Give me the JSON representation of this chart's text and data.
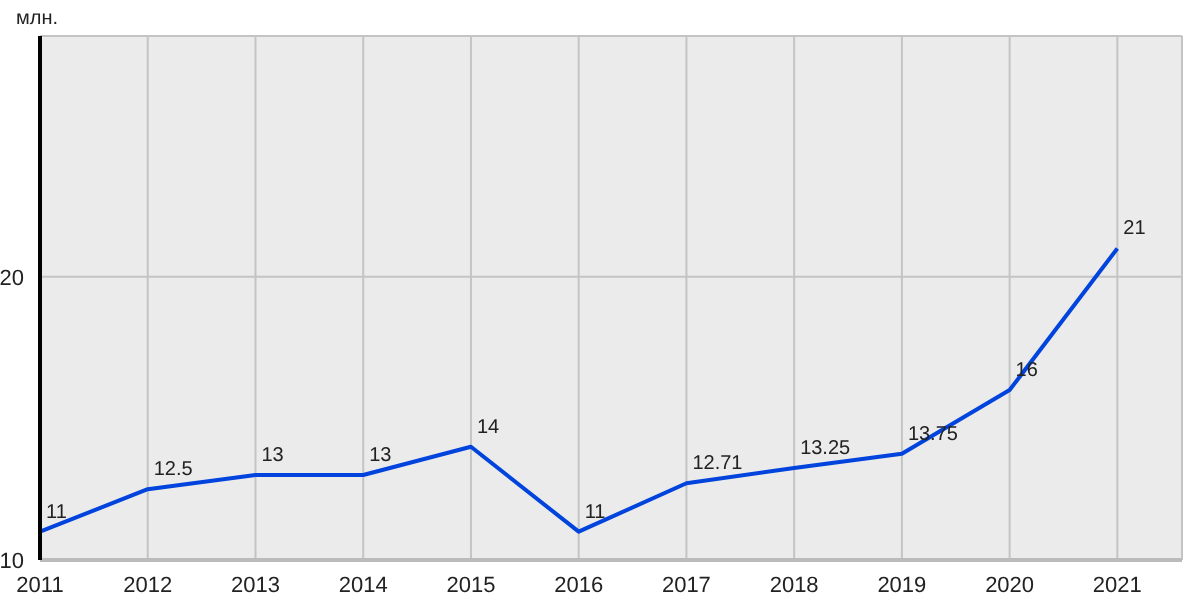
{
  "chart_data": {
    "type": "line",
    "ylabel": "млн.",
    "x": [
      2011,
      2012,
      2013,
      2014,
      2015,
      2016,
      2017,
      2018,
      2019,
      2020,
      2021
    ],
    "series": [
      {
        "color": "#0044dd",
        "values": [
          11,
          12.5,
          13,
          13,
          14,
          11,
          12.71,
          13.25,
          13.75,
          16,
          21
        ]
      }
    ],
    "xlim": [
      2011,
      2021.6
    ],
    "xticks": [
      2011,
      2012,
      2013,
      2014,
      2015,
      2016,
      2017,
      2018,
      2019,
      2020,
      2021
    ],
    "ylim": [
      10,
      28.5
    ],
    "yticks": [
      10,
      20
    ],
    "grid": true,
    "data_labels": true,
    "marker": "none"
  }
}
